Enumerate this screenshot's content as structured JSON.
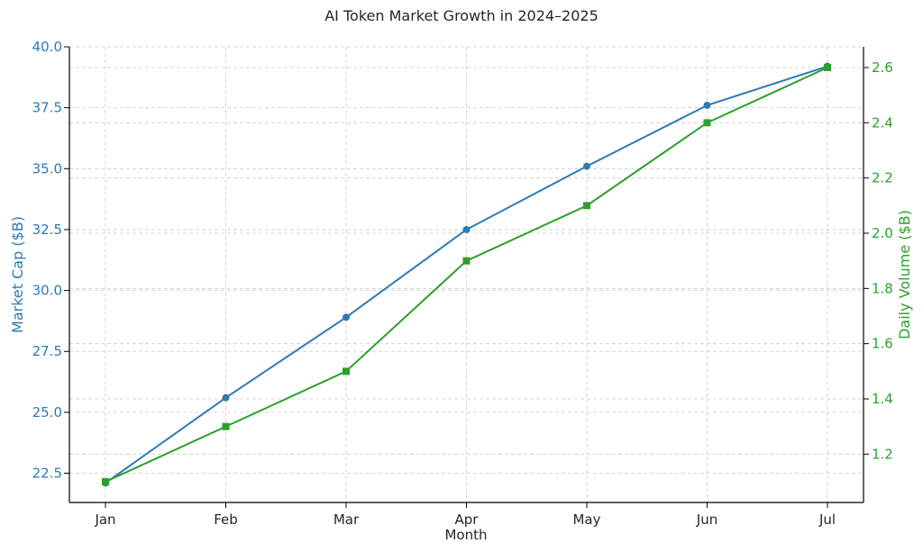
{
  "chart_data": {
    "type": "line",
    "title": "AI Token Market Growth in 2024–2025",
    "xlabel": "Month",
    "categories": [
      "Jan",
      "Feb",
      "Mar",
      "Apr",
      "May",
      "Jun",
      "Jul"
    ],
    "series": [
      {
        "values": [
          22.1,
          25.6,
          28.9,
          32.5,
          35.1,
          37.6,
          39.2
        ],
        "axis": "left",
        "color": "#2c7bb6",
        "marker": "circle"
      },
      {
        "values": [
          1.1,
          1.3,
          1.5,
          1.9,
          2.1,
          2.4,
          2.6
        ],
        "axis": "right",
        "color": "#2ca02c",
        "marker": "square"
      }
    ],
    "y_left": {
      "label": "Market Cap ($B)",
      "range": [
        21.3,
        40.0
      ],
      "ticks": [
        "22.5",
        "25.0",
        "27.5",
        "30.0",
        "32.5",
        "35.0",
        "37.5",
        "40.0"
      ],
      "color": "#2c7bb6"
    },
    "y_right": {
      "label": "Daily Volume ($B)",
      "range": [
        1.025,
        2.675
      ],
      "ticks": [
        "1.2",
        "1.4",
        "1.6",
        "1.8",
        "2.0",
        "2.2",
        "2.4",
        "2.6"
      ],
      "color": "#2ca02c"
    },
    "grid": true
  }
}
